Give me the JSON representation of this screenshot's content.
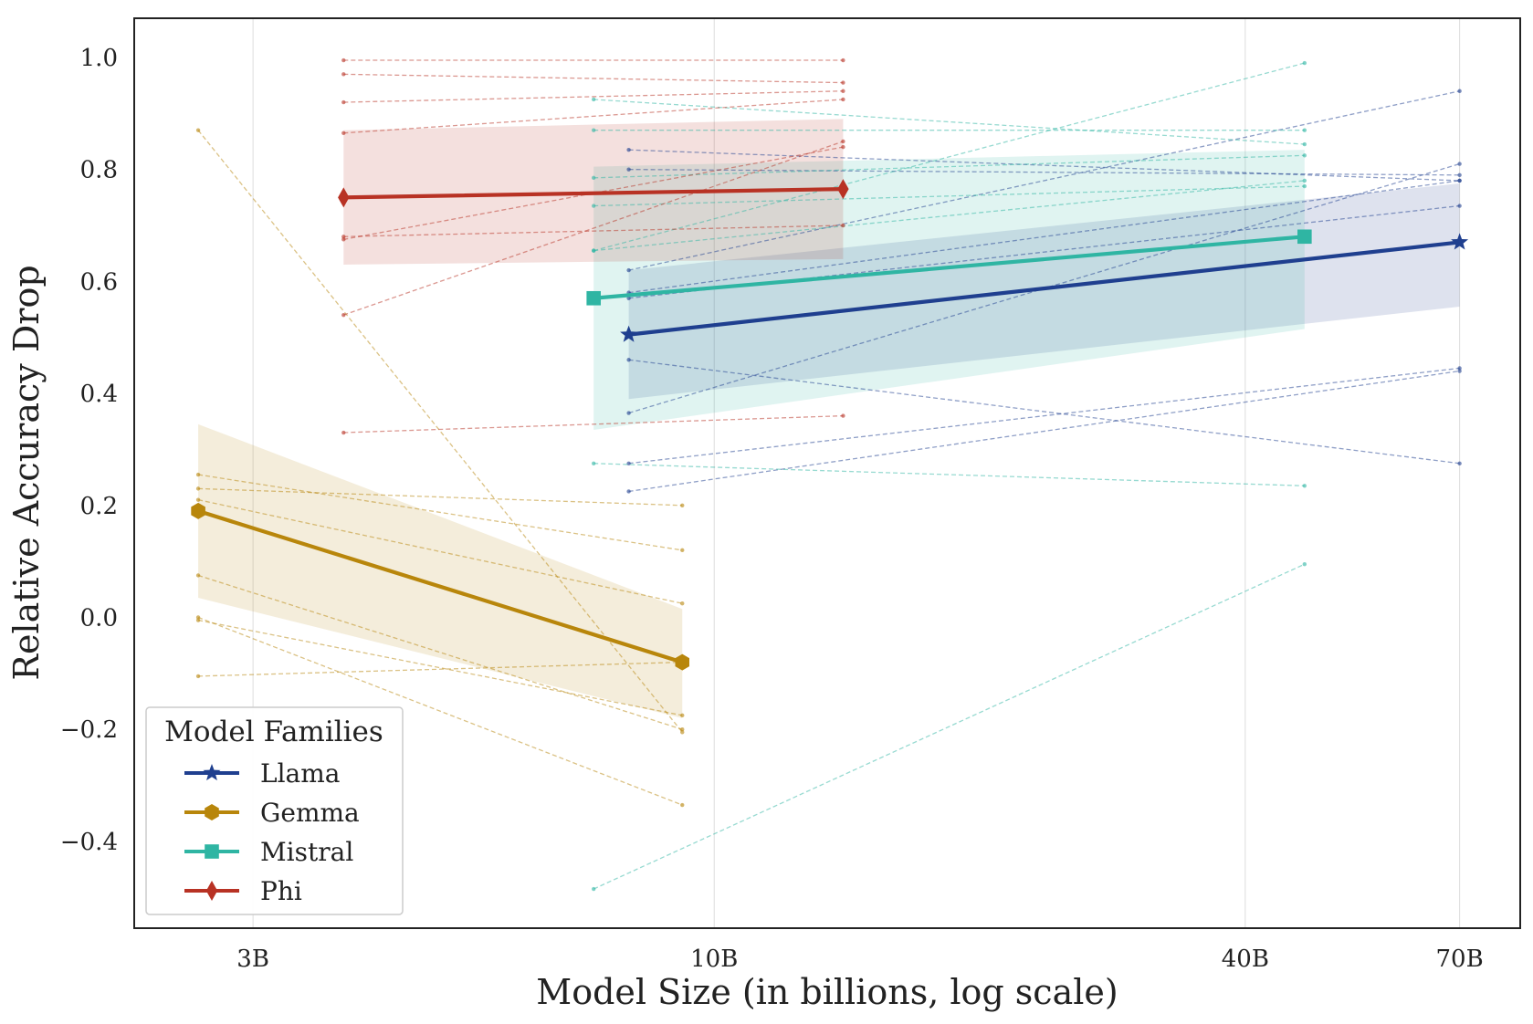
{
  "chart_data": {
    "type": "line",
    "title": "",
    "xlabel": "Model Size (in billions, log scale)",
    "ylabel": "Relative Accuracy Drop",
    "x_scale": "log",
    "xlim": [
      2.2,
      82
    ],
    "ylim": [
      -0.555,
      1.07
    ],
    "x_ticks": [
      3,
      10,
      40,
      70
    ],
    "x_tick_labels": [
      "3B",
      "10B",
      "40B",
      "70B"
    ],
    "y_ticks": [
      -0.4,
      -0.2,
      0.0,
      0.2,
      0.4,
      0.6,
      0.8,
      1.0
    ],
    "y_tick_labels": [
      "−0.4",
      "−0.2",
      "0.0",
      "0.2",
      "0.4",
      "0.6",
      "0.8",
      "1.0"
    ],
    "grid": "vertical",
    "legend": {
      "title": "Model Families",
      "placement": "lower-left"
    },
    "series": [
      {
        "name": "Llama",
        "color": "#1f3f8f",
        "marker": "star",
        "x": [
          8,
          70
        ],
        "mean": [
          0.505,
          0.67
        ],
        "band_low": [
          0.39,
          0.555
        ],
        "band_high": [
          0.62,
          0.775
        ],
        "individual": [
          [
            0.835,
            0.78
          ],
          [
            0.8,
            0.79
          ],
          [
            0.46,
            0.275
          ],
          [
            0.365,
            0.81
          ],
          [
            0.275,
            0.445
          ],
          [
            0.225,
            0.44
          ],
          [
            0.57,
            0.735
          ],
          [
            0.62,
            0.94
          ],
          [
            0.58,
            0.78
          ]
        ]
      },
      {
        "name": "Gemma",
        "color": "#b8860b",
        "marker": "hexagon",
        "x": [
          2.6,
          9.2
        ],
        "mean": [
          0.19,
          -0.08
        ],
        "band_low": [
          0.035,
          -0.18
        ],
        "band_high": [
          0.345,
          0.015
        ],
        "individual": [
          [
            0.87,
            -0.205
          ],
          [
            0.255,
            0.12
          ],
          [
            0.23,
            0.2
          ],
          [
            0.21,
            0.025
          ],
          [
            0.075,
            -0.2
          ],
          [
            -0.005,
            -0.175
          ],
          [
            0.0,
            -0.335
          ],
          [
            -0.105,
            -0.08
          ]
        ]
      },
      {
        "name": "Mistral",
        "color": "#2fb5a3",
        "marker": "square",
        "x": [
          7.3,
          46.7
        ],
        "mean": [
          0.57,
          0.68
        ],
        "band_low": [
          0.335,
          0.515
        ],
        "band_high": [
          0.805,
          0.835
        ],
        "individual": [
          [
            0.925,
            0.845
          ],
          [
            0.87,
            0.87
          ],
          [
            0.785,
            0.825
          ],
          [
            0.735,
            0.77
          ],
          [
            0.655,
            0.78
          ],
          [
            0.275,
            0.235
          ],
          [
            -0.485,
            0.095
          ],
          [
            0.655,
            0.99
          ]
        ]
      },
      {
        "name": "Phi",
        "color": "#b83224",
        "marker": "diamond",
        "x": [
          3.8,
          14
        ],
        "mean": [
          0.75,
          0.765
        ],
        "band_low": [
          0.63,
          0.64
        ],
        "band_high": [
          0.87,
          0.89
        ],
        "individual": [
          [
            0.995,
            0.995
          ],
          [
            0.97,
            0.955
          ],
          [
            0.92,
            0.94
          ],
          [
            0.865,
            0.925
          ],
          [
            0.68,
            0.7
          ],
          [
            0.675,
            0.84
          ],
          [
            0.54,
            0.85
          ],
          [
            0.33,
            0.36
          ]
        ]
      }
    ]
  }
}
